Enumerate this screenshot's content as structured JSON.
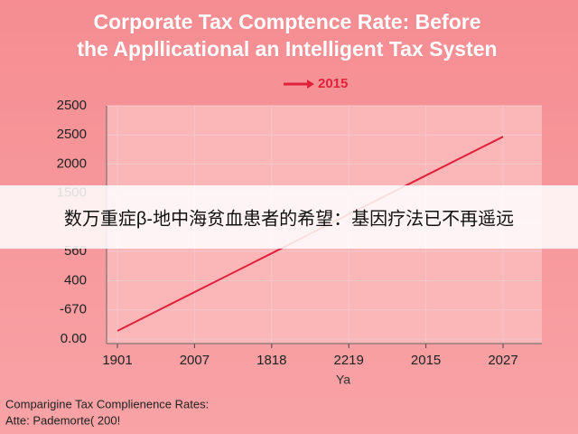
{
  "chart_data": {
    "type": "line",
    "title": [
      "Corporate Tax Comptence Rate: Before",
      "the Appllicational an Intelligent Tax Systen"
    ],
    "categories": [
      "1901",
      "2007",
      "1818",
      "2219",
      "2015",
      "2027"
    ],
    "series": [
      {
        "name": "2015",
        "color": "#e0223c",
        "values": [
          0.28,
          1.61,
          2.94,
          4.28,
          5.61,
          6.94
        ]
      }
    ],
    "ylim": [
      0,
      8
    ],
    "yticks": [
      {
        "value": 0,
        "label": "0.00"
      },
      {
        "value": 1,
        "label": "-670"
      },
      {
        "value": 2,
        "label": "400"
      },
      {
        "value": 3,
        "label": "560"
      },
      {
        "value": 4,
        "label": null
      },
      {
        "value": 5,
        "label": "1500"
      },
      {
        "value": 6,
        "label": "2000"
      },
      {
        "value": 7,
        "label": "2500"
      },
      {
        "value": 8,
        "label": "2500"
      }
    ],
    "xlabel": "Ya",
    "grid": true,
    "footnote": [
      "Comparigine Tax Complienence Rates:",
      "Atte: Pademorte( 200!"
    ]
  },
  "overlay": {
    "text": "数万重症β-地中海贫血患者的希望：基因疗法已不再遥远"
  }
}
